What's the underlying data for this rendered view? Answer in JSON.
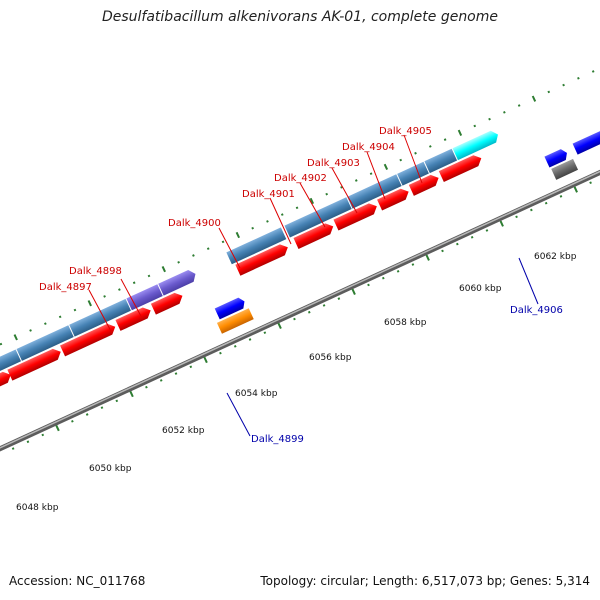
{
  "title": "Desulfatibacillum alkenivorans AK-01, complete genome",
  "footer": {
    "accession": "Accession: NC_011768",
    "topology": "Topology: circular; Length: 6,517,073 bp; Genes: 5,314"
  },
  "scale_labels": [
    "6048 kbp",
    "6050 kbp",
    "6052 kbp",
    "6054 kbp",
    "6056 kbp",
    "6058 kbp",
    "6060 kbp",
    "6062 kbp"
  ],
  "gene_labels": [
    {
      "text": "Dalk_4897",
      "color": "#cc0000"
    },
    {
      "text": "Dalk_4898",
      "color": "#cc0000"
    },
    {
      "text": "Dalk_4899",
      "color": "#0000aa"
    },
    {
      "text": "Dalk_4900",
      "color": "#cc0000"
    },
    {
      "text": "Dalk_4901",
      "color": "#cc0000"
    },
    {
      "text": "Dalk_4902",
      "color": "#cc0000"
    },
    {
      "text": "Dalk_4903",
      "color": "#cc0000"
    },
    {
      "text": "Dalk_4904",
      "color": "#cc0000"
    },
    {
      "text": "Dalk_4905",
      "color": "#cc0000"
    },
    {
      "text": "Dalk_4906",
      "color": "#0000aa"
    }
  ],
  "colors": {
    "backbone": "#8a8a8a",
    "cds_forward": "#ff0000",
    "cds_reverse": "#0000ff",
    "steelblue": "#4682b4",
    "slateblue": "#6a5acd",
    "cyan": "#00ffff",
    "orange": "#ff8c00",
    "gray": "#5a5a5a",
    "tick": "#2e7d32"
  }
}
